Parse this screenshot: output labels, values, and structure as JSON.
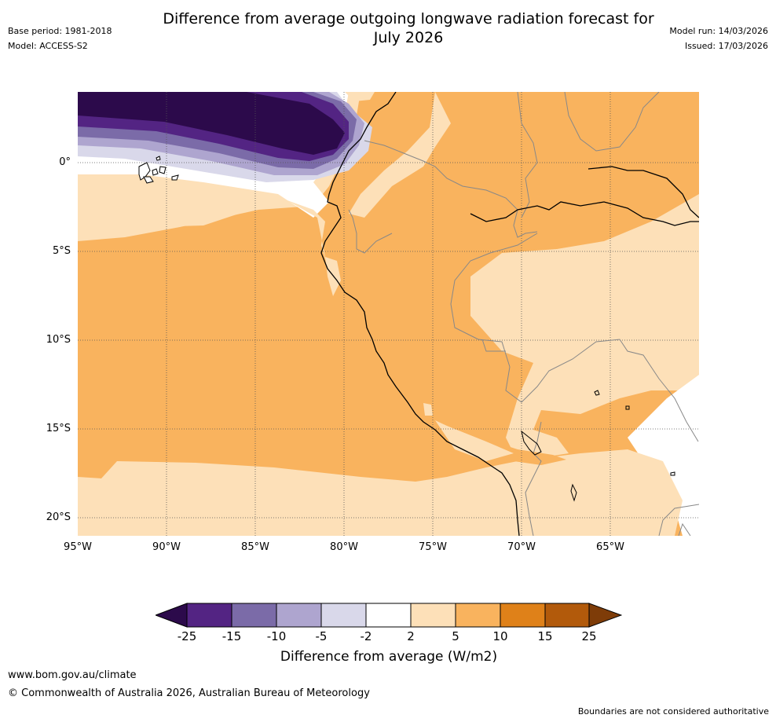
{
  "title": "Difference from average outgoing longwave radiation forecast for July 2026",
  "title_line1": "Difference from average outgoing longwave radiation forecast for",
  "title_line2": "July 2026",
  "base_period": "Base period: 1981-2018",
  "model": "Model: ACCESS-S2",
  "model_run": "Model run: 14/03/2026",
  "issued": "Issued: 17/03/2026",
  "map": {
    "lon_range": [
      -95,
      -60
    ],
    "lat_range": [
      -21,
      4
    ],
    "lat_ticks": [
      "0°",
      "5°S",
      "10°S",
      "15°S",
      "20°S"
    ],
    "lon_ticks": [
      "95°W",
      "90°W",
      "85°W",
      "80°W",
      "75°W",
      "70°W",
      "65°W"
    ]
  },
  "colorbar": {
    "title": "Difference from average (W/m2)",
    "ticks": [
      "-25",
      "-15",
      "-10",
      "-5",
      "-2",
      "2",
      "5",
      "10",
      "15",
      "25"
    ],
    "colors": [
      "#2c0a4b",
      "#532483",
      "#7b6ba8",
      "#aea5cf",
      "#d9d8ea",
      "#ffffff",
      "#fde0b8",
      "#f9b35e",
      "#df8119",
      "#b25a0b",
      "#7e3c08"
    ]
  },
  "footer": {
    "url": "www.bom.gov.au/climate",
    "copyright": "© Commonwealth of Australia 2026, Australian Bureau of Meteorology",
    "disclaimer": "Boundaries are not considered authoritative"
  }
}
